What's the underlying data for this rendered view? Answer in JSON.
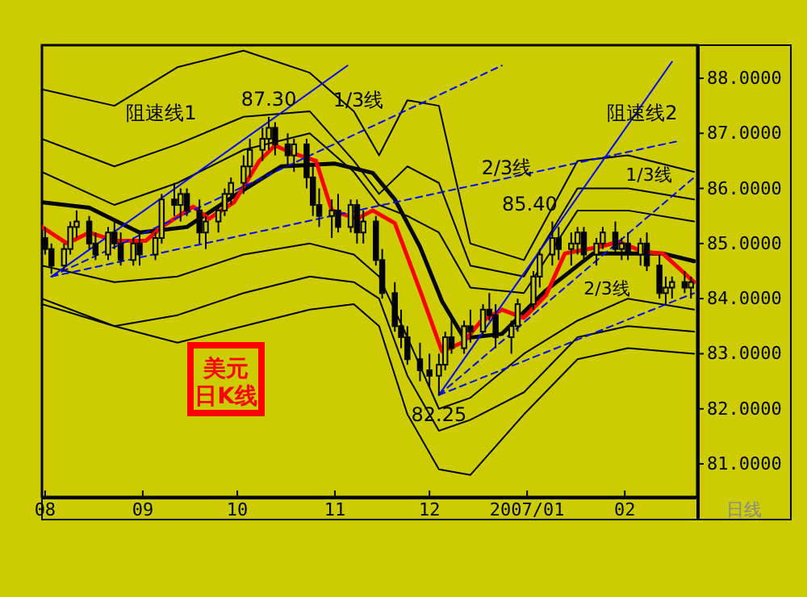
{
  "chart_data": {
    "type": "candlestick",
    "xlim": [
      "2006-07-31",
      "2007-02-24"
    ],
    "ylim": [
      80.4,
      88.6
    ],
    "xticks": [
      {
        "value": "2006-08-01",
        "label": "08"
      },
      {
        "value": "2006-09-01",
        "label": "09"
      },
      {
        "value": "2006-10-01",
        "label": "10"
      },
      {
        "value": "2006-11-01",
        "label": "11"
      },
      {
        "value": "2006-12-01",
        "label": "12"
      },
      {
        "value": "2007-01-01",
        "label": "2007/01"
      },
      {
        "value": "2007-02-01",
        "label": "02"
      }
    ],
    "yticks": [
      {
        "value": 81,
        "label": "81.0000"
      },
      {
        "value": 82,
        "label": "82.0000"
      },
      {
        "value": 83,
        "label": "83.0000"
      },
      {
        "value": 84,
        "label": "84.0000"
      },
      {
        "value": 85,
        "label": "85.0000"
      },
      {
        "value": 86,
        "label": "86.0000"
      },
      {
        "value": 87,
        "label": "87.0000"
      },
      {
        "value": 88,
        "label": "88.0000"
      }
    ],
    "x": [
      "2006-08-01",
      "2006-08-03",
      "2006-08-07",
      "2006-08-09",
      "2006-08-11",
      "2006-08-15",
      "2006-08-17",
      "2006-08-21",
      "2006-08-23",
      "2006-08-25",
      "2006-08-29",
      "2006-08-31",
      "2006-09-05",
      "2006-09-07",
      "2006-09-11",
      "2006-09-13",
      "2006-09-15",
      "2006-09-19",
      "2006-09-21",
      "2006-09-25",
      "2006-09-27",
      "2006-09-29",
      "2006-10-03",
      "2006-10-05",
      "2006-10-09",
      "2006-10-11",
      "2006-10-13",
      "2006-10-17",
      "2006-10-19",
      "2006-10-23",
      "2006-10-25",
      "2006-10-27",
      "2006-10-31",
      "2006-11-02",
      "2006-11-06",
      "2006-11-08",
      "2006-11-10",
      "2006-11-14",
      "2006-11-16",
      "2006-11-20",
      "2006-11-22",
      "2006-11-24",
      "2006-11-28",
      "2006-12-01",
      "2006-12-04",
      "2006-12-06",
      "2006-12-08",
      "2006-12-12",
      "2006-12-14",
      "2006-12-18",
      "2006-12-20",
      "2006-12-22",
      "2006-12-27",
      "2006-12-29",
      "2007-01-03",
      "2007-01-05",
      "2007-01-09",
      "2007-01-11",
      "2007-01-15",
      "2007-01-17",
      "2007-01-19",
      "2007-01-23",
      "2007-01-25",
      "2007-01-29",
      "2007-01-31",
      "2007-02-02",
      "2007-02-06",
      "2007-02-08",
      "2007-02-12",
      "2007-02-14",
      "2007-02-16",
      "2007-02-20",
      "2007-02-22"
    ],
    "ohlc": [
      [
        85.1,
        85.3,
        84.8,
        84.9
      ],
      [
        84.9,
        85.0,
        84.45,
        84.6
      ],
      [
        84.6,
        85.0,
        84.5,
        84.9
      ],
      [
        84.9,
        85.4,
        84.8,
        85.3
      ],
      [
        85.3,
        85.6,
        85.1,
        85.4
      ],
      [
        85.4,
        85.5,
        84.9,
        85.0
      ],
      [
        85.0,
        85.2,
        84.7,
        84.8
      ],
      [
        84.8,
        85.3,
        84.7,
        85.2
      ],
      [
        85.2,
        85.4,
        84.9,
        85.0
      ],
      [
        85.0,
        85.2,
        84.6,
        84.7
      ],
      [
        84.7,
        85.1,
        84.6,
        85.0
      ],
      [
        85.0,
        85.2,
        84.6,
        84.8
      ],
      [
        84.8,
        85.2,
        84.7,
        85.1
      ],
      [
        85.1,
        85.9,
        85.0,
        85.8
      ],
      [
        85.8,
        86.1,
        85.5,
        85.7
      ],
      [
        85.7,
        86.0,
        85.4,
        85.9
      ],
      [
        85.9,
        86.0,
        85.5,
        85.6
      ],
      [
        85.6,
        85.8,
        85.0,
        85.2
      ],
      [
        85.2,
        85.5,
        84.9,
        85.4
      ],
      [
        85.4,
        85.7,
        85.2,
        85.6
      ],
      [
        85.6,
        86.0,
        85.5,
        85.9
      ],
      [
        85.9,
        86.2,
        85.7,
        86.1
      ],
      [
        86.1,
        86.6,
        85.9,
        86.4
      ],
      [
        86.4,
        86.9,
        86.2,
        86.7
      ],
      [
        86.7,
        87.1,
        86.5,
        86.9
      ],
      [
        86.9,
        87.3,
        86.7,
        87.1
      ],
      [
        87.1,
        87.2,
        86.6,
        86.8
      ],
      [
        86.8,
        87.0,
        86.4,
        86.6
      ],
      [
        86.6,
        86.9,
        86.3,
        86.8
      ],
      [
        86.8,
        86.9,
        86.0,
        86.2
      ],
      [
        86.2,
        86.4,
        85.5,
        85.7
      ],
      [
        85.7,
        86.0,
        85.3,
        85.5
      ],
      [
        85.5,
        85.8,
        85.1,
        85.6
      ],
      [
        85.6,
        85.9,
        85.2,
        85.3
      ],
      [
        85.3,
        85.8,
        85.2,
        85.7
      ],
      [
        85.7,
        85.8,
        85.0,
        85.2
      ],
      [
        85.2,
        85.6,
        85.0,
        85.4
      ],
      [
        85.4,
        85.5,
        84.6,
        84.7
      ],
      [
        84.7,
        84.9,
        84.0,
        84.1
      ],
      [
        84.1,
        84.3,
        83.4,
        83.5
      ],
      [
        83.5,
        83.8,
        83.1,
        83.3
      ],
      [
        83.3,
        83.5,
        82.8,
        82.9
      ],
      [
        82.9,
        83.2,
        82.5,
        82.7
      ],
      [
        82.7,
        83.0,
        82.4,
        82.6
      ],
      [
        82.6,
        83.0,
        82.25,
        82.8
      ],
      [
        82.8,
        83.4,
        82.7,
        83.3
      ],
      [
        83.3,
        83.7,
        83.0,
        83.1
      ],
      [
        83.1,
        83.6,
        83.0,
        83.5
      ],
      [
        83.5,
        83.8,
        83.2,
        83.4
      ],
      [
        83.4,
        83.9,
        83.3,
        83.8
      ],
      [
        83.8,
        84.1,
        83.6,
        83.7
      ],
      [
        83.7,
        83.9,
        83.1,
        83.3
      ],
      [
        83.3,
        83.6,
        83.0,
        83.5
      ],
      [
        83.5,
        84.0,
        83.4,
        83.9
      ],
      [
        83.9,
        84.5,
        83.8,
        84.4
      ],
      [
        84.4,
        84.9,
        84.2,
        84.8
      ],
      [
        84.8,
        85.4,
        84.6,
        85.1
      ],
      [
        85.1,
        85.3,
        84.7,
        84.9
      ],
      [
        84.9,
        85.2,
        84.6,
        85.0
      ],
      [
        85.0,
        85.3,
        84.8,
        85.2
      ],
      [
        85.2,
        85.3,
        84.7,
        84.8
      ],
      [
        84.8,
        85.1,
        84.6,
        85.0
      ],
      [
        85.0,
        85.3,
        84.9,
        85.2
      ],
      [
        85.2,
        85.4,
        84.8,
        84.9
      ],
      [
        84.9,
        85.1,
        84.7,
        85.0
      ],
      [
        85.0,
        85.2,
        84.7,
        84.8
      ],
      [
        84.8,
        85.1,
        84.6,
        85.0
      ],
      [
        85.0,
        85.2,
        84.5,
        84.6
      ],
      [
        84.6,
        84.8,
        84.0,
        84.1
      ],
      [
        84.1,
        84.4,
        83.9,
        84.2
      ],
      [
        84.2,
        84.4,
        84.0,
        84.3
      ],
      [
        84.3,
        84.5,
        84.1,
        84.2
      ],
      [
        84.2,
        84.4,
        84.0,
        84.3
      ]
    ],
    "series": [
      {
        "type": "line",
        "color": "#000000",
        "line_style": "solid",
        "x": [
          "2006-07-31",
          "2006-08-23",
          "2006-09-12",
          "2006-10-03",
          "2006-10-24",
          "2006-11-07",
          "2006-11-15",
          "2006-11-24",
          "2006-12-04",
          "2006-12-14",
          "2006-12-31",
          "2007-01-17",
          "2007-02-02",
          "2007-02-23"
        ],
        "values": [
          87.8,
          87.5,
          88.2,
          88.5,
          88.1,
          87.4,
          86.6,
          87.6,
          87.5,
          85.0,
          84.7,
          86.5,
          86.6,
          86.3
        ]
      },
      {
        "type": "line",
        "color": "#000000",
        "line_style": "solid",
        "x": [
          "2006-07-31",
          "2006-08-23",
          "2006-09-12",
          "2006-10-03",
          "2006-10-24",
          "2006-11-07",
          "2006-11-15",
          "2006-11-24",
          "2006-12-04",
          "2006-12-14",
          "2006-12-31",
          "2007-01-17",
          "2007-02-02",
          "2007-02-23"
        ],
        "values": [
          86.9,
          86.4,
          86.8,
          87.3,
          87.4,
          86.5,
          85.9,
          86.4,
          86.1,
          84.6,
          84.4,
          86.0,
          86.0,
          85.8
        ]
      },
      {
        "type": "line",
        "color": "#000000",
        "line_style": "solid",
        "x": [
          "2006-07-31",
          "2006-08-23",
          "2006-09-12",
          "2006-10-03",
          "2006-10-24",
          "2006-11-07",
          "2006-11-15",
          "2006-11-24",
          "2006-12-04",
          "2006-12-14",
          "2006-12-31",
          "2007-01-17",
          "2007-02-02",
          "2007-02-23"
        ],
        "values": [
          86.3,
          85.7,
          86.1,
          86.7,
          87.0,
          86.3,
          85.7,
          85.5,
          85.2,
          84.2,
          84.1,
          85.6,
          85.6,
          85.4
        ]
      },
      {
        "type": "line",
        "color": "#000000",
        "line_style": "solid",
        "x": [
          "2006-07-31",
          "2006-08-23",
          "2006-09-12",
          "2006-10-03",
          "2006-10-24",
          "2006-11-07",
          "2006-11-15",
          "2006-11-24",
          "2006-12-04",
          "2006-12-14",
          "2006-12-31",
          "2007-01-17",
          "2007-02-02",
          "2007-02-23"
        ],
        "values": [
          84.6,
          84.3,
          84.4,
          84.8,
          85.0,
          84.8,
          84.4,
          83.3,
          82.0,
          82.2,
          83.0,
          83.6,
          84.0,
          83.8
        ]
      },
      {
        "type": "line",
        "color": "#000000",
        "line_style": "solid",
        "x": [
          "2006-07-31",
          "2006-08-23",
          "2006-09-12",
          "2006-10-03",
          "2006-10-24",
          "2006-11-07",
          "2006-11-15",
          "2006-11-24",
          "2006-12-04",
          "2006-12-14",
          "2006-12-31",
          "2007-01-17",
          "2007-02-02",
          "2007-02-23"
        ],
        "values": [
          84.0,
          83.5,
          83.7,
          84.1,
          84.4,
          84.3,
          84.0,
          82.6,
          81.6,
          81.8,
          82.3,
          83.3,
          83.5,
          83.4
        ]
      },
      {
        "type": "line",
        "color": "#000000",
        "line_style": "solid",
        "x": [
          "2006-07-31",
          "2006-08-23",
          "2006-09-12",
          "2006-10-03",
          "2006-10-24",
          "2006-11-07",
          "2006-11-15",
          "2006-11-24",
          "2006-12-04",
          "2006-12-14",
          "2006-12-31",
          "2007-01-17",
          "2007-02-02",
          "2007-02-23"
        ],
        "values": [
          83.9,
          83.5,
          83.2,
          83.5,
          83.8,
          83.9,
          83.5,
          81.9,
          80.9,
          80.8,
          81.9,
          82.9,
          83.1,
          83.0
        ]
      },
      {
        "type": "line",
        "color": "#000000",
        "line_style": "solid",
        "x": [
          "2006-07-31",
          "2006-08-15",
          "2006-08-31",
          "2006-09-15",
          "2006-10-01",
          "2006-10-15",
          "2006-11-01",
          "2006-11-13",
          "2006-11-20",
          "2006-11-28",
          "2006-12-05",
          "2006-12-12",
          "2006-12-24",
          "2007-01-07",
          "2007-01-22",
          "2007-02-13",
          "2007-02-23"
        ],
        "values": [
          85.75,
          85.65,
          85.2,
          85.3,
          85.9,
          86.4,
          86.45,
          86.28,
          85.8,
          84.94,
          83.95,
          83.28,
          83.36,
          84.15,
          84.82,
          84.82,
          84.68
        ]
      },
      {
        "type": "line",
        "color": "#ff0000",
        "line_style": "solid",
        "x": [
          "2006-07-31",
          "2006-08-08",
          "2006-08-15",
          "2006-08-23",
          "2006-09-02",
          "2006-09-07",
          "2006-09-17",
          "2006-09-22",
          "2006-09-30",
          "2006-10-08",
          "2006-10-13",
          "2006-10-18",
          "2006-10-26",
          "2006-10-31",
          "2006-11-08",
          "2006-11-13",
          "2006-11-20",
          "2006-11-28",
          "2006-12-05",
          "2006-12-12",
          "2006-12-17",
          "2006-12-24",
          "2006-12-31",
          "2007-01-07",
          "2007-01-13",
          "2007-01-24",
          "2007-01-30",
          "2007-02-07",
          "2007-02-13",
          "2007-02-23"
        ],
        "values": [
          85.3,
          85.0,
          85.2,
          85.05,
          85.05,
          85.3,
          85.67,
          85.45,
          85.75,
          86.5,
          86.78,
          86.65,
          86.5,
          85.6,
          85.45,
          85.6,
          85.37,
          84.15,
          83.04,
          83.22,
          83.57,
          83.8,
          83.65,
          84.06,
          84.82,
          84.94,
          85.03,
          84.85,
          84.82,
          84.3
        ]
      },
      {
        "type": "line",
        "color": "#0000ff",
        "line_style": "solid",
        "x": [
          "2006-08-03",
          "2006-11-05"
        ],
        "values": [
          84.4,
          88.23
        ]
      },
      {
        "type": "line",
        "color": "#0000ff",
        "line_style": "dashed",
        "x": [
          "2006-08-03",
          "2006-12-24"
        ],
        "values": [
          84.4,
          88.23
        ]
      },
      {
        "type": "line",
        "color": "#0000ff",
        "line_style": "dashed",
        "x": [
          "2006-08-03",
          "2007-02-18"
        ],
        "values": [
          84.4,
          86.86
        ]
      },
      {
        "type": "line",
        "color": "#0000ff",
        "line_style": "solid",
        "x": [
          "2006-12-04",
          "2007-02-16"
        ],
        "values": [
          82.25,
          88.3
        ]
      },
      {
        "type": "line",
        "color": "#0000ff",
        "line_style": "dashed",
        "x": [
          "2006-12-04",
          "2007-02-23"
        ],
        "values": [
          82.25,
          86.2
        ]
      },
      {
        "type": "line",
        "color": "#0000ff",
        "line_style": "dashed",
        "x": [
          "2006-12-04",
          "2007-02-23"
        ],
        "values": [
          82.25,
          84.1
        ]
      }
    ],
    "annotations": [
      "美元日K线",
      "日线",
      "阻速线1",
      "1/3线",
      "2/3线",
      "阻速线2",
      "1/3线",
      "2/3线",
      {
        "text": "87.30",
        "x": "2006-10-11",
        "y": 87.3
      },
      {
        "text": "82.25",
        "x": "2006-12-04",
        "y": 82.25
      },
      {
        "text": "85.40",
        "x": "2007-01-09",
        "y": 85.4
      }
    ]
  }
}
